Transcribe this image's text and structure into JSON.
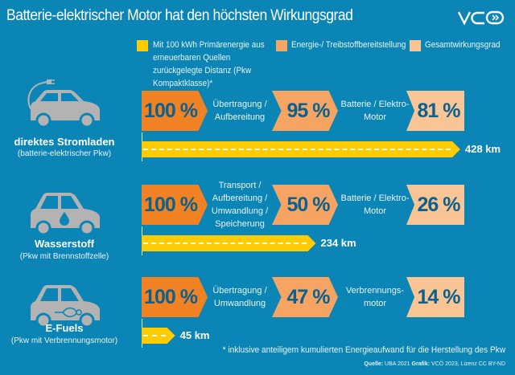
{
  "title": "Batterie-elektrischer Motor hat den höchsten Wirkungsgrad",
  "logo": "VCÖ",
  "legend": [
    {
      "label": "Mit 100 kWh Primärenergie aus erneuerbaren Quellen zurückgelegte Distanz (Pkw Kompaktklasse)*",
      "color": "#ffcc00"
    },
    {
      "label": "Energie-/ Treibstoffbereitstellung",
      "color": "#f5a463"
    },
    {
      "label": "Gesamtwirkungsgrad",
      "color": "#fac594"
    }
  ],
  "colors": {
    "background": "#0a85b5",
    "start": "#f08224",
    "supply": "#f5a463",
    "total": "#fac594",
    "distance": "#ffcc00"
  },
  "rows": [
    {
      "name": "direktes Stromladen",
      "sub": "(batterie-elektrischer Pkw)",
      "icon": "car-plug-icon",
      "start": "100 %",
      "step1": "Übertragung / Aufbereitung",
      "mid": "95 %",
      "step2": "Batterie / Elektro-Motor",
      "end": "81 %",
      "km": 428,
      "km_label": "428 km"
    },
    {
      "name": "Wasserstoff",
      "sub": "(Pkw mit Brennstoffzelle)",
      "icon": "car-hydrogen-icon",
      "start": "100 %",
      "step1": "Transport / Aufbereitung / Umwandlung / Speicherung",
      "mid": "50 %",
      "step2": "Batterie / Elektro-Motor",
      "end": "26 %",
      "km": 234,
      "km_label": "234 km"
    },
    {
      "name": "E-Fuels",
      "sub": "(Pkw mit Verbrennungsmotor)",
      "icon": "car-engine-icon",
      "start": "100 %",
      "step1": "Übertragung / Umwandlung",
      "mid": "47 %",
      "step2": "Verbrennungs-motor",
      "end": "14 %",
      "km": 45,
      "km_label": "45 km"
    }
  ],
  "footnote": "* inklusive anteiligem kumulierten Energieaufwand für die Herstellung des Pkw",
  "source": {
    "q_label": "Quelle:",
    "q": "UBA 2021",
    "g_label": "Grafik:",
    "g": "VCÖ 2023, Lizenz CC BY-ND"
  }
}
